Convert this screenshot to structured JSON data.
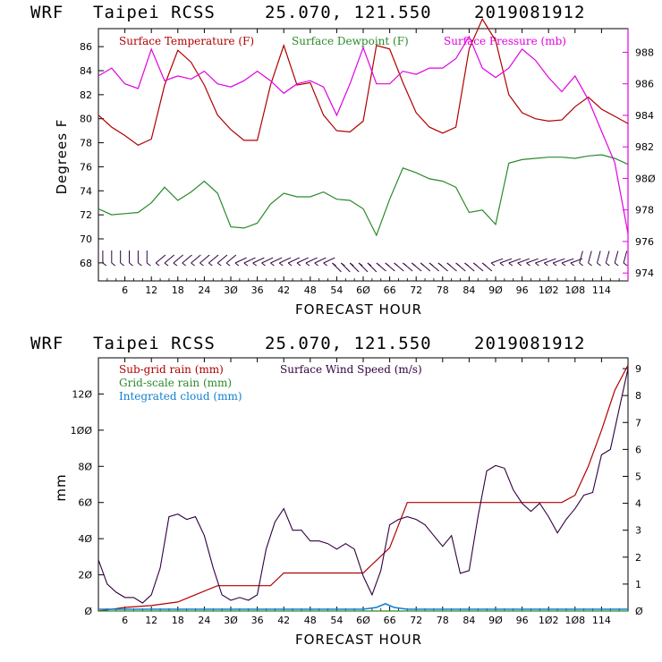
{
  "header": {
    "model": "WRF",
    "location": "Taipei RCSS",
    "coords": "25.070, 121.550",
    "init": "2019081912"
  },
  "colors": {
    "temperature": "#b00000",
    "dewpoint": "#2a8a2a",
    "pressure": "#e000e0",
    "subgrid": "#b00000",
    "gridscale": "#2a8a2a",
    "cloud": "#1080d0",
    "wind": "#300040",
    "barb": "#300040"
  },
  "chart_data": [
    {
      "type": "line",
      "id": "top",
      "xlabel": "FORECAST HOUR",
      "ylabel": "Degrees F",
      "xlim": [
        0,
        120
      ],
      "ylim": [
        66.5,
        87.5
      ],
      "y2lim": [
        973.5,
        989.5
      ],
      "x_ticks": [
        6,
        12,
        18,
        24,
        30,
        36,
        42,
        48,
        54,
        60,
        66,
        72,
        78,
        84,
        90,
        96,
        102,
        108,
        114
      ],
      "x_tick_labels": [
        "6",
        "12",
        "18",
        "24",
        "3Ø",
        "36",
        "42",
        "48",
        "54",
        "6Ø",
        "66",
        "72",
        "78",
        "84",
        "9Ø",
        "96",
        "1Ø2",
        "1Ø8",
        "114"
      ],
      "y_ticks": [
        68,
        70,
        72,
        74,
        76,
        78,
        80,
        82,
        84,
        86
      ],
      "y2_ticks": [
        974,
        976,
        978,
        980,
        982,
        984,
        986,
        988
      ],
      "y2_tick_labels": [
        "974",
        "976",
        "978",
        "98Ø",
        "982",
        "984",
        "986",
        "988"
      ],
      "legend": [
        "Surface Temperature (F)",
        "Surface Dewpoint (F)",
        "Surface Pressure (mb)"
      ],
      "series": [
        {
          "name": "Surface Temperature (F)",
          "axis": "left",
          "x": [
            0,
            3,
            6,
            9,
            12,
            15,
            18,
            21,
            24,
            27,
            30,
            33,
            36,
            39,
            42,
            45,
            48,
            51,
            54,
            57,
            60,
            63,
            66,
            69,
            72,
            75,
            78,
            81,
            84,
            87,
            90,
            93,
            96,
            99,
            102,
            105,
            108,
            111,
            114,
            117,
            120
          ],
          "y": [
            80.3,
            79.3,
            78.6,
            77.8,
            78.3,
            82.8,
            85.7,
            84.7,
            82.8,
            80.3,
            79.1,
            78.2,
            78.2,
            82.8,
            86.1,
            82.8,
            83.0,
            80.3,
            79.0,
            78.9,
            79.8,
            86.1,
            85.8,
            83.0,
            80.5,
            79.3,
            78.8,
            79.3,
            85.8,
            88.3,
            86.5,
            82.0,
            80.5,
            80.0,
            79.8,
            79.9,
            81.0,
            81.8,
            80.8,
            80.2,
            79.6
          ]
        },
        {
          "name": "Surface Dewpoint (F)",
          "axis": "left",
          "x": [
            0,
            3,
            6,
            9,
            12,
            15,
            18,
            21,
            24,
            27,
            30,
            33,
            36,
            39,
            42,
            45,
            48,
            51,
            54,
            57,
            60,
            63,
            66,
            69,
            72,
            75,
            78,
            81,
            84,
            87,
            90,
            93,
            96,
            99,
            102,
            105,
            108,
            111,
            114,
            117,
            120
          ],
          "y": [
            72.5,
            72.0,
            72.1,
            72.2,
            73.0,
            74.3,
            73.2,
            73.9,
            74.8,
            73.8,
            71.0,
            70.9,
            71.3,
            72.9,
            73.8,
            73.5,
            73.5,
            73.9,
            73.3,
            73.2,
            72.5,
            70.3,
            73.3,
            75.9,
            75.5,
            75.0,
            74.8,
            74.3,
            72.2,
            72.4,
            71.2,
            76.3,
            76.6,
            76.7,
            76.8,
            76.8,
            76.7,
            76.9,
            77.0,
            76.7,
            76.2
          ]
        },
        {
          "name": "Surface Pressure (mb)",
          "axis": "right",
          "x": [
            0,
            3,
            6,
            9,
            12,
            15,
            18,
            21,
            24,
            27,
            30,
            33,
            36,
            39,
            42,
            45,
            48,
            51,
            54,
            57,
            60,
            63,
            66,
            69,
            72,
            75,
            78,
            81,
            84,
            87,
            90,
            93,
            96,
            99,
            102,
            105,
            108,
            111,
            114,
            117,
            120
          ],
          "y": [
            986.5,
            987.0,
            986.0,
            985.7,
            988.2,
            986.2,
            986.5,
            986.3,
            986.8,
            986.0,
            985.8,
            986.2,
            986.8,
            986.2,
            985.4,
            986.0,
            986.2,
            985.8,
            984.0,
            986.0,
            988.3,
            986.0,
            986.0,
            986.8,
            986.6,
            987.0,
            987.0,
            987.6,
            989.0,
            987.0,
            986.4,
            987.0,
            988.2,
            987.5,
            986.4,
            985.5,
            986.5,
            985.0,
            983.0,
            981.0,
            976.5
          ]
        }
      ]
    },
    {
      "type": "line",
      "id": "bottom",
      "xlabel": "FORECAST HOUR",
      "ylabel": "mm",
      "xlim": [
        0,
        120
      ],
      "ylim": [
        0,
        140
      ],
      "y2lim": [
        0,
        9.4
      ],
      "x_ticks": [
        6,
        12,
        18,
        24,
        30,
        36,
        42,
        48,
        54,
        60,
        66,
        72,
        78,
        84,
        90,
        96,
        102,
        108,
        114
      ],
      "x_tick_labels": [
        "6",
        "12",
        "18",
        "24",
        "3Ø",
        "36",
        "42",
        "48",
        "54",
        "6Ø",
        "66",
        "72",
        "78",
        "84",
        "9Ø",
        "96",
        "1Ø2",
        "1Ø8",
        "114"
      ],
      "y_ticks": [
        0,
        20,
        40,
        60,
        80,
        100,
        120
      ],
      "y_tick_labels": [
        "Ø",
        "2Ø",
        "4Ø",
        "6Ø",
        "8Ø",
        "1ØØ",
        "12Ø"
      ],
      "y2_ticks": [
        0,
        1,
        2,
        3,
        4,
        5,
        6,
        7,
        8,
        9
      ],
      "y2_tick_labels": [
        "Ø",
        "1",
        "2",
        "3",
        "4",
        "5",
        "6",
        "7",
        "8",
        "9"
      ],
      "legend": [
        "Sub-grid rain (mm)",
        "Grid-scale rain (mm)",
        "Integrated cloud (mm)",
        "Surface Wind Speed (m/s)"
      ],
      "series": [
        {
          "name": "Sub-grid rain (mm)",
          "axis": "left",
          "x": [
            0,
            6,
            12,
            18,
            21,
            27,
            33,
            39,
            42,
            60,
            66,
            70,
            75,
            90,
            105,
            108,
            111,
            114,
            117,
            120
          ],
          "y": [
            0,
            2,
            3,
            5,
            8,
            14,
            14,
            14,
            21,
            21,
            35,
            60,
            60,
            60,
            60,
            64,
            80,
            100,
            122,
            136
          ]
        },
        {
          "name": "Grid-scale rain (mm)",
          "axis": "left",
          "x": [
            0,
            120
          ],
          "y": [
            0,
            0
          ]
        },
        {
          "name": "Integrated cloud (mm)",
          "axis": "left",
          "x": [
            0,
            60,
            63,
            65,
            67,
            70,
            90,
            120
          ],
          "y": [
            1,
            1,
            2,
            4,
            2,
            1,
            1,
            1
          ]
        },
        {
          "name": "Surface Wind Speed (m/s)",
          "axis": "right",
          "x": [
            0,
            2,
            4,
            6,
            8,
            10,
            12,
            14,
            16,
            18,
            20,
            22,
            24,
            26,
            28,
            30,
            32,
            34,
            36,
            38,
            40,
            42,
            44,
            46,
            48,
            50,
            52,
            54,
            56,
            58,
            60,
            62,
            64,
            66,
            68,
            70,
            72,
            74,
            76,
            78,
            80,
            82,
            84,
            86,
            88,
            90,
            92,
            94,
            96,
            98,
            100,
            102,
            104,
            106,
            108,
            110,
            112,
            114,
            116,
            118,
            120
          ],
          "y": [
            1.9,
            1.0,
            0.7,
            0.5,
            0.5,
            0.3,
            0.6,
            1.6,
            3.5,
            3.6,
            3.4,
            3.5,
            2.8,
            1.6,
            0.6,
            0.4,
            0.5,
            0.4,
            0.6,
            2.3,
            3.3,
            3.8,
            3.0,
            3.0,
            2.6,
            2.6,
            2.5,
            2.3,
            2.5,
            2.3,
            1.3,
            0.6,
            1.5,
            3.2,
            3.4,
            3.5,
            3.4,
            3.2,
            2.8,
            2.4,
            2.8,
            1.4,
            1.5,
            3.5,
            5.2,
            5.4,
            5.3,
            4.5,
            4.0,
            3.7,
            4.0,
            3.5,
            2.9,
            3.4,
            3.8,
            4.3,
            4.4,
            5.8,
            6.0,
            7.5,
            9.0
          ]
        }
      ]
    }
  ]
}
